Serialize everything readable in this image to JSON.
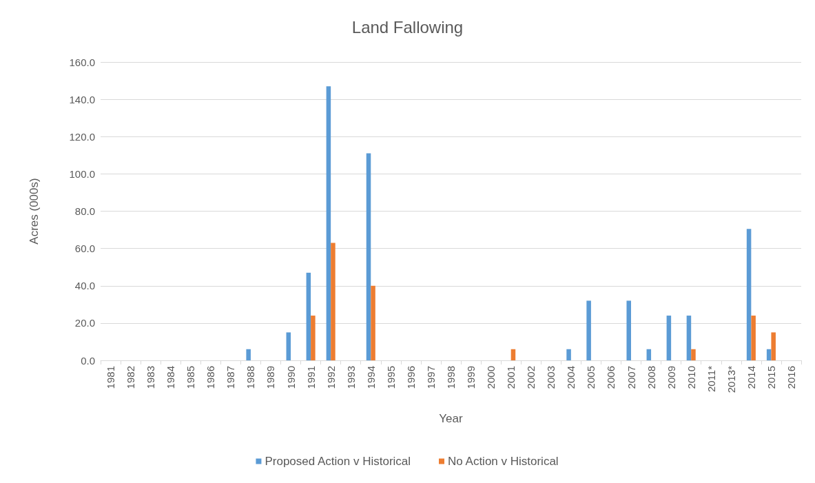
{
  "chart_data": {
    "type": "bar",
    "title": "Land Fallowing",
    "xlabel": "Year",
    "ylabel": "Acres (000s)",
    "categories": [
      "1981",
      "1982",
      "1983",
      "1984",
      "1985",
      "1986",
      "1987",
      "1988",
      "1989",
      "1990",
      "1991",
      "1992",
      "1993",
      "1994",
      "1995",
      "1996",
      "1997",
      "1998",
      "1999",
      "2000",
      "2001",
      "2002",
      "2003",
      "2004",
      "2005",
      "2006",
      "2007",
      "2008",
      "2009",
      "2010",
      "2011*",
      "2013*",
      "2014",
      "2015",
      "2016"
    ],
    "series": [
      {
        "name": "Proposed Action v Historical",
        "color": "#5b9bd5",
        "values": [
          0,
          0,
          0,
          0,
          0,
          0,
          0,
          6,
          0,
          15,
          47,
          147,
          0,
          111,
          0,
          0,
          0,
          0,
          0,
          0,
          0,
          0,
          0,
          6,
          32,
          0,
          32,
          6,
          24,
          24,
          0,
          0,
          70.5,
          6,
          0
        ]
      },
      {
        "name": "No Action v Historical",
        "color": "#ed7d31",
        "values": [
          0,
          0,
          0,
          0,
          0,
          0,
          0,
          0,
          0,
          0,
          24,
          63,
          0,
          40,
          0,
          0,
          0,
          0,
          0,
          0,
          6,
          0,
          0,
          0,
          0,
          0,
          0,
          0,
          0,
          6,
          0,
          0,
          24,
          15,
          0
        ]
      }
    ],
    "ylim": [
      0,
      160
    ],
    "yticks": [
      {
        "value": 0,
        "label": "0.0"
      },
      {
        "value": 20,
        "label": "20.0"
      },
      {
        "value": 40,
        "label": "40.0"
      },
      {
        "value": 60,
        "label": "60.0"
      },
      {
        "value": 80,
        "label": "80.0"
      },
      {
        "value": 100,
        "label": "100.0"
      },
      {
        "value": 120,
        "label": "120.0"
      },
      {
        "value": 140,
        "label": "140.0"
      },
      {
        "value": 160,
        "label": "160.0"
      }
    ],
    "grid": "y",
    "legend": "bottom"
  }
}
